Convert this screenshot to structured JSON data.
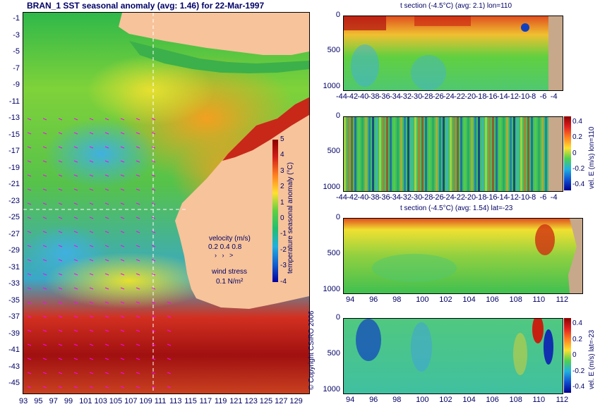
{
  "map": {
    "title": "BRAN_1  SST seasonal anomaly (avg: 1.46) for 22-Mar-1997",
    "lat_ticks": [
      "-1",
      "-3",
      "-5",
      "-7",
      "-9",
      "-11",
      "-13",
      "-15",
      "-17",
      "-19",
      "-21",
      "-23",
      "-25",
      "-27",
      "-29",
      "-31",
      "-33",
      "-35",
      "-37",
      "-39",
      "-41",
      "-43",
      "-45"
    ],
    "lon_ticks": [
      "93",
      "95",
      "97",
      "99",
      "101",
      "103",
      "105",
      "107",
      "109",
      "111",
      "113",
      "115",
      "117",
      "119",
      "121",
      "123",
      "125",
      "127",
      "129"
    ],
    "colorbar": {
      "label": "temperature seasonal anomaly (°C)",
      "ticks": [
        "5",
        "4",
        "3",
        "2",
        "1",
        "0",
        "-1",
        "-2",
        "-3",
        "-4"
      ],
      "range": [
        -4,
        5
      ]
    },
    "velocity_legend": {
      "title": "velocity (m/s)",
      "values": "0.2 0.4 0.8",
      "wind_title": "wind stress",
      "wind_value": "0.1 N/m²"
    },
    "crosshair": {
      "lon": 110,
      "lat": -23
    }
  },
  "sections": [
    {
      "id": "t-lon",
      "title": "t section (-4.5°C) (avg: 2.1) lon=110",
      "y_ticks": [
        "0",
        "500",
        "1000"
      ],
      "x_ticks": [
        "-44",
        "-42",
        "-40",
        "-38",
        "-36",
        "-34",
        "-32",
        "-30",
        "-28",
        "-26",
        "-24",
        "-22",
        "-20",
        "-18",
        "-16",
        "-14",
        "-12",
        "-10",
        "-8",
        "-6",
        "-4"
      ]
    },
    {
      "id": "v-lon",
      "title": "",
      "y_ticks": [
        "0",
        "500",
        "1000"
      ],
      "x_ticks": [
        "-44",
        "-42",
        "-40",
        "-38",
        "-36",
        "-34",
        "-32",
        "-30",
        "-28",
        "-26",
        "-24",
        "-22",
        "-20",
        "-18",
        "-16",
        "-14",
        "-12",
        "-10",
        "-8",
        "-6",
        "-4"
      ],
      "side_label": "vel. E (m/s) lon=110",
      "cbar_ticks": [
        "0.4",
        "0.2",
        "0",
        "-0.2",
        "-0.4"
      ]
    },
    {
      "id": "t-lat",
      "title": "t section (-4.5°C) (avg: 1.54) lat=-23",
      "y_ticks": [
        "0",
        "500",
        "1000"
      ],
      "x_ticks": [
        "94",
        "96",
        "98",
        "100",
        "102",
        "104",
        "106",
        "108",
        "110",
        "112"
      ]
    },
    {
      "id": "v-lat",
      "title": "",
      "y_ticks": [
        "0",
        "500",
        "1000"
      ],
      "x_ticks": [
        "94",
        "96",
        "98",
        "100",
        "102",
        "104",
        "106",
        "108",
        "110",
        "112"
      ],
      "side_label": "vel. E (m/s) lat=-23",
      "cbar_ticks": [
        "0.4",
        "0.2",
        "0",
        "-0.2",
        "-0.4"
      ]
    }
  ],
  "copyright": "© Copyright CSIRO 2006",
  "colors": {
    "land": "#f7c39a",
    "seafloor": "#c8a88a",
    "text": "#000066",
    "crosshair": "#ffffff",
    "vectors": "#ff00ff"
  }
}
